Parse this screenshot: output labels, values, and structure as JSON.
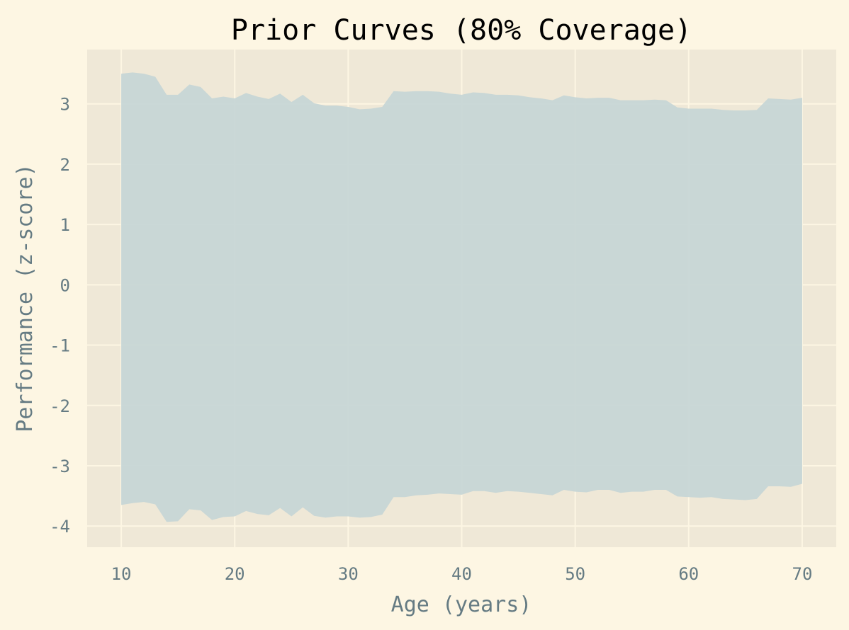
{
  "chart_data": {
    "type": "area",
    "title": "Prior Curves (80% Coverage)",
    "xlabel": "Age (years)",
    "ylabel": "Performance (z-score)",
    "xlim": [
      7,
      73
    ],
    "ylim": [
      -4.35,
      3.9
    ],
    "xticks": [
      10,
      20,
      30,
      40,
      50,
      60,
      70
    ],
    "yticks": [
      -4,
      -3,
      -2,
      -1,
      0,
      1,
      2,
      3
    ],
    "grid": true,
    "legend": "none",
    "colors": {
      "background": "#fdf6e3",
      "plot_area": "#efe8d7",
      "grid": "#fdf6e3",
      "band": "#c5d5d6",
      "title": "#000000",
      "labels": "#657b83"
    },
    "series": [
      {
        "x": [
          10,
          11,
          12,
          13,
          14,
          15,
          16,
          17,
          18,
          19,
          20,
          21,
          22,
          23,
          24,
          25,
          26,
          27,
          28,
          29,
          30,
          31,
          32,
          33,
          34,
          35,
          36,
          37,
          38,
          39,
          40,
          41,
          42,
          43,
          44,
          45,
          46,
          47,
          48,
          49,
          50,
          51,
          52,
          53,
          54,
          55,
          56,
          57,
          58,
          59,
          60,
          61,
          62,
          63,
          64,
          65,
          66,
          67,
          68,
          69,
          70
        ],
        "lower": [
          -3.65,
          -3.62,
          -3.6,
          -3.64,
          -3.93,
          -3.92,
          -3.72,
          -3.74,
          -3.9,
          -3.85,
          -3.84,
          -3.75,
          -3.8,
          -3.82,
          -3.7,
          -3.84,
          -3.69,
          -3.83,
          -3.86,
          -3.84,
          -3.84,
          -3.86,
          -3.85,
          -3.81,
          -3.52,
          -3.52,
          -3.49,
          -3.48,
          -3.46,
          -3.47,
          -3.48,
          -3.42,
          -3.42,
          -3.45,
          -3.42,
          -3.43,
          -3.45,
          -3.47,
          -3.49,
          -3.4,
          -3.43,
          -3.44,
          -3.4,
          -3.4,
          -3.45,
          -3.43,
          -3.43,
          -3.4,
          -3.4,
          -3.51,
          -3.52,
          -3.53,
          -3.52,
          -3.55,
          -3.56,
          -3.57,
          -3.55,
          -3.34,
          -3.34,
          -3.35,
          -3.3
        ],
        "upper": [
          3.5,
          3.52,
          3.5,
          3.45,
          3.15,
          3.15,
          3.32,
          3.28,
          3.09,
          3.12,
          3.09,
          3.18,
          3.12,
          3.08,
          3.17,
          3.03,
          3.15,
          3.01,
          2.97,
          2.97,
          2.95,
          2.91,
          2.92,
          2.95,
          3.21,
          3.2,
          3.21,
          3.21,
          3.2,
          3.17,
          3.15,
          3.19,
          3.18,
          3.15,
          3.15,
          3.14,
          3.11,
          3.09,
          3.06,
          3.14,
          3.11,
          3.09,
          3.1,
          3.1,
          3.06,
          3.06,
          3.06,
          3.07,
          3.06,
          2.94,
          2.92,
          2.92,
          2.92,
          2.9,
          2.89,
          2.89,
          2.9,
          3.09,
          3.08,
          3.07,
          3.1
        ]
      }
    ]
  }
}
